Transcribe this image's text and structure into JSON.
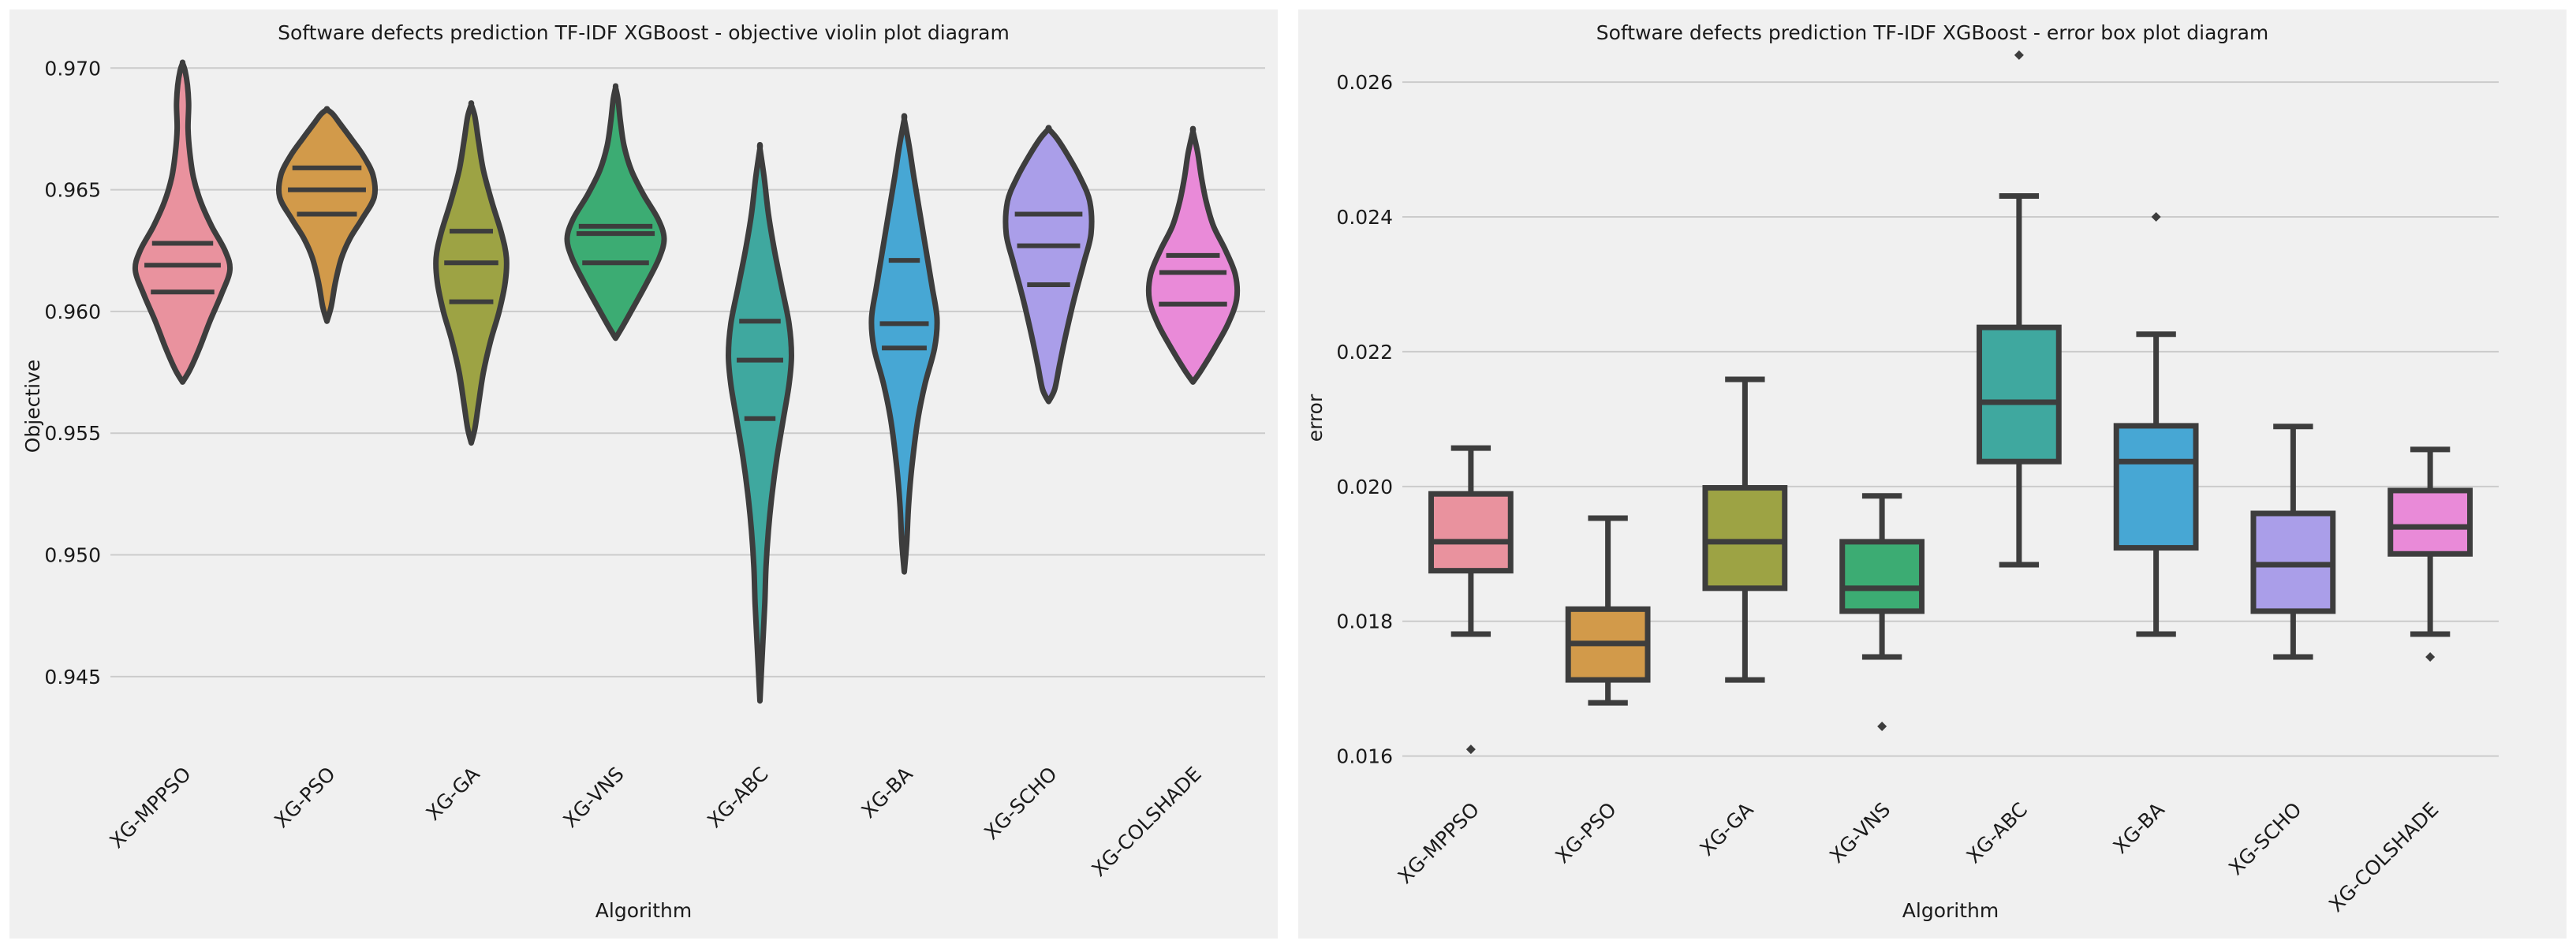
{
  "chart_data": [
    {
      "type": "violin",
      "title": "Software defects prediction TF-IDF XGBoost -  objective violin plot diagram",
      "xlabel": "Algorithm",
      "ylabel": "Objective",
      "ylim": [
        0.9425,
        0.9715
      ],
      "yticks": [
        0.945,
        0.95,
        0.955,
        0.96,
        0.965,
        0.97
      ],
      "ytick_labels": [
        "0.945",
        "0.950",
        "0.955",
        "0.960",
        "0.965",
        "0.970"
      ],
      "grid": true,
      "categories": [
        "XG-MPPSO",
        "XG-PSO",
        "XG-GA",
        "XG-VNS",
        "XG-ABC",
        "XG-BA",
        "XG-SCHO",
        "XG-COLSHADE"
      ],
      "colors": [
        "#e9929e",
        "#d29a4a",
        "#9da344",
        "#3cac73",
        "#3fa89f",
        "#47a7d4",
        "#aa9ee9",
        "#e98ad8"
      ],
      "series": [
        {
          "name": "XG-MPPSO",
          "min": 0.9571,
          "max": 0.9702,
          "quartiles": [
            0.9608,
            0.9619,
            0.9628
          ],
          "profile": [
            [
              0.9571,
              0
            ],
            [
              0.9576,
              0.12
            ],
            [
              0.9585,
              0.28
            ],
            [
              0.9596,
              0.45
            ],
            [
              0.9607,
              0.64
            ],
            [
              0.9617,
              0.78
            ],
            [
              0.9625,
              0.7
            ],
            [
              0.9635,
              0.48
            ],
            [
              0.9645,
              0.3
            ],
            [
              0.9655,
              0.18
            ],
            [
              0.9665,
              0.12
            ],
            [
              0.9675,
              0.09
            ],
            [
              0.9685,
              0.1
            ],
            [
              0.9693,
              0.08
            ],
            [
              0.9699,
              0.04
            ],
            [
              0.9702,
              0
            ]
          ]
        },
        {
          "name": "XG-PSO",
          "min": 0.9596,
          "max": 0.9683,
          "quartiles": [
            0.964,
            0.965,
            0.9659
          ],
          "profile": [
            [
              0.9596,
              0
            ],
            [
              0.9602,
              0.07
            ],
            [
              0.9612,
              0.14
            ],
            [
              0.9622,
              0.24
            ],
            [
              0.963,
              0.38
            ],
            [
              0.9638,
              0.58
            ],
            [
              0.9647,
              0.78
            ],
            [
              0.9656,
              0.76
            ],
            [
              0.9664,
              0.6
            ],
            [
              0.9671,
              0.4
            ],
            [
              0.9677,
              0.22
            ],
            [
              0.9681,
              0.1
            ],
            [
              0.9683,
              0
            ]
          ]
        },
        {
          "name": "XG-GA",
          "min": 0.9546,
          "max": 0.9685,
          "quartiles": [
            0.9604,
            0.962,
            0.9633
          ],
          "profile": [
            [
              0.9546,
              0
            ],
            [
              0.9552,
              0.06
            ],
            [
              0.9562,
              0.12
            ],
            [
              0.9575,
              0.2
            ],
            [
              0.9588,
              0.32
            ],
            [
              0.96,
              0.46
            ],
            [
              0.9612,
              0.56
            ],
            [
              0.9622,
              0.58
            ],
            [
              0.9632,
              0.5
            ],
            [
              0.9645,
              0.34
            ],
            [
              0.9658,
              0.2
            ],
            [
              0.967,
              0.12
            ],
            [
              0.968,
              0.06
            ],
            [
              0.9685,
              0
            ]
          ]
        },
        {
          "name": "XG-VNS",
          "min": 0.9589,
          "max": 0.9692,
          "quartiles": [
            0.962,
            0.9632,
            0.9635
          ],
          "profile": [
            [
              0.9589,
              0
            ],
            [
              0.9594,
              0.12
            ],
            [
              0.9602,
              0.3
            ],
            [
              0.9612,
              0.52
            ],
            [
              0.9622,
              0.72
            ],
            [
              0.963,
              0.8
            ],
            [
              0.9638,
              0.7
            ],
            [
              0.9648,
              0.46
            ],
            [
              0.9658,
              0.26
            ],
            [
              0.9668,
              0.14
            ],
            [
              0.9678,
              0.08
            ],
            [
              0.9687,
              0.04
            ],
            [
              0.9692,
              0
            ]
          ]
        },
        {
          "name": "XG-ABC",
          "min": 0.944,
          "max": 0.9667,
          "quartiles": [
            0.9556,
            0.958,
            0.9596
          ],
          "profile": [
            [
              0.944,
              0
            ],
            [
              0.945,
              0.02
            ],
            [
              0.9465,
              0.05
            ],
            [
              0.948,
              0.08
            ],
            [
              0.9495,
              0.1
            ],
            [
              0.951,
              0.14
            ],
            [
              0.9525,
              0.2
            ],
            [
              0.954,
              0.28
            ],
            [
              0.9555,
              0.38
            ],
            [
              0.957,
              0.48
            ],
            [
              0.9582,
              0.52
            ],
            [
              0.9595,
              0.48
            ],
            [
              0.961,
              0.36
            ],
            [
              0.9625,
              0.24
            ],
            [
              0.964,
              0.14
            ],
            [
              0.9655,
              0.07
            ],
            [
              0.9667,
              0
            ]
          ]
        },
        {
          "name": "XG-BA",
          "min": 0.9493,
          "max": 0.9679,
          "quartiles": [
            0.9585,
            0.9595,
            0.9621
          ],
          "profile": [
            [
              0.9493,
              0
            ],
            [
              0.9505,
              0.04
            ],
            [
              0.952,
              0.07
            ],
            [
              0.9535,
              0.12
            ],
            [
              0.9555,
              0.22
            ],
            [
              0.957,
              0.34
            ],
            [
              0.9585,
              0.5
            ],
            [
              0.9597,
              0.54
            ],
            [
              0.961,
              0.46
            ],
            [
              0.9625,
              0.36
            ],
            [
              0.964,
              0.26
            ],
            [
              0.9655,
              0.16
            ],
            [
              0.9668,
              0.08
            ],
            [
              0.9679,
              0
            ]
          ]
        },
        {
          "name": "XG-SCHO",
          "min": 0.9563,
          "max": 0.9675,
          "quartiles": [
            0.9611,
            0.9627,
            0.964
          ],
          "profile": [
            [
              0.9563,
              0
            ],
            [
              0.9568,
              0.1
            ],
            [
              0.9578,
              0.18
            ],
            [
              0.959,
              0.28
            ],
            [
              0.9605,
              0.42
            ],
            [
              0.962,
              0.58
            ],
            [
              0.9632,
              0.7
            ],
            [
              0.9645,
              0.68
            ],
            [
              0.9655,
              0.52
            ],
            [
              0.9664,
              0.32
            ],
            [
              0.9671,
              0.14
            ],
            [
              0.9675,
              0
            ]
          ]
        },
        {
          "name": "XG-COLSHADE",
          "min": 0.9571,
          "max": 0.9674,
          "quartiles": [
            0.9603,
            0.9616,
            0.9623
          ],
          "profile": [
            [
              0.9571,
              0
            ],
            [
              0.9576,
              0.14
            ],
            [
              0.9585,
              0.36
            ],
            [
              0.9595,
              0.58
            ],
            [
              0.9605,
              0.72
            ],
            [
              0.9615,
              0.7
            ],
            [
              0.9625,
              0.54
            ],
            [
              0.9635,
              0.34
            ],
            [
              0.9645,
              0.22
            ],
            [
              0.9655,
              0.14
            ],
            [
              0.9665,
              0.08
            ],
            [
              0.9674,
              0
            ]
          ]
        }
      ]
    },
    {
      "type": "box",
      "title": "Software defects prediction TF-IDF XGBoost - error box plot diagram",
      "xlabel": "Algorithm",
      "ylabel": "error",
      "ylim": [
        0.01575,
        0.02675
      ],
      "yticks": [
        0.016,
        0.018,
        0.02,
        0.022,
        0.024,
        0.026
      ],
      "ytick_labels": [
        "0.016",
        "0.018",
        "0.020",
        "0.022",
        "0.024",
        "0.026"
      ],
      "grid": true,
      "categories": [
        "XG-MPPSO",
        "XG-PSO",
        "XG-GA",
        "XG-VNS",
        "XG-ABC",
        "XG-BA",
        "XG-SCHO",
        "XG-COLSHADE"
      ],
      "colors": [
        "#e9929e",
        "#d29a4a",
        "#9da344",
        "#3cac73",
        "#3fa89f",
        "#47a7d4",
        "#aa9ee9",
        "#e98ad8"
      ],
      "series": [
        {
          "name": "XG-MPPSO",
          "whisker_low": 0.01781,
          "q1": 0.01875,
          "median": 0.01918,
          "q3": 0.01989,
          "whisker_high": 0.02057,
          "outliers": [
            0.0161
          ]
        },
        {
          "name": "XG-PSO",
          "whisker_low": 0.01679,
          "q1": 0.01713,
          "median": 0.01767,
          "q3": 0.01818,
          "whisker_high": 0.01953,
          "outliers": []
        },
        {
          "name": "XG-GA",
          "whisker_low": 0.01713,
          "q1": 0.01849,
          "median": 0.01918,
          "q3": 0.01998,
          "whisker_high": 0.02159,
          "outliers": []
        },
        {
          "name": "XG-VNS",
          "whisker_low": 0.01747,
          "q1": 0.01815,
          "median": 0.01849,
          "q3": 0.01918,
          "whisker_high": 0.01986,
          "outliers": [
            0.01644
          ]
        },
        {
          "name": "XG-ABC",
          "whisker_low": 0.01884,
          "q1": 0.02037,
          "median": 0.02125,
          "q3": 0.02236,
          "whisker_high": 0.02431,
          "outliers": [
            0.0264
          ]
        },
        {
          "name": "XG-BA",
          "whisker_low": 0.01781,
          "q1": 0.01909,
          "median": 0.02037,
          "q3": 0.0209,
          "whisker_high": 0.02226,
          "outliers": [
            0.024
          ]
        },
        {
          "name": "XG-SCHO",
          "whisker_low": 0.01747,
          "q1": 0.01815,
          "median": 0.01884,
          "q3": 0.0196,
          "whisker_high": 0.02089,
          "outliers": []
        },
        {
          "name": "XG-COLSHADE",
          "whisker_low": 0.01781,
          "q1": 0.019,
          "median": 0.0194,
          "q3": 0.01994,
          "whisker_high": 0.02055,
          "outliers": [
            0.01747
          ]
        }
      ]
    }
  ]
}
